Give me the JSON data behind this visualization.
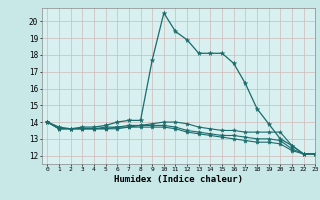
{
  "title": "",
  "xlabel": "Humidex (Indice chaleur)",
  "xlim": [
    -0.5,
    23
  ],
  "ylim": [
    11.5,
    20.8
  ],
  "yticks": [
    12,
    13,
    14,
    15,
    16,
    17,
    18,
    19,
    20
  ],
  "xticks": [
    0,
    1,
    2,
    3,
    4,
    5,
    6,
    7,
    8,
    9,
    10,
    11,
    12,
    13,
    14,
    15,
    16,
    17,
    18,
    19,
    20,
    21,
    22,
    23
  ],
  "bg_color": "#c8e8e8",
  "plot_bg": "#d8f0f0",
  "line_color": "#1a6b6b",
  "grid_color": "#c0d8d8",
  "line1_y": [
    14.0,
    13.7,
    13.6,
    13.7,
    13.7,
    13.8,
    14.0,
    14.1,
    14.1,
    17.7,
    20.5,
    19.4,
    18.9,
    18.1,
    18.1,
    18.1,
    17.5,
    16.3,
    14.8,
    13.9,
    13.0,
    12.6,
    12.1,
    12.1
  ],
  "line2_y": [
    14.0,
    13.6,
    13.6,
    13.6,
    13.6,
    13.7,
    13.7,
    13.8,
    13.8,
    13.9,
    14.0,
    14.0,
    13.9,
    13.7,
    13.6,
    13.5,
    13.5,
    13.4,
    13.4,
    13.4,
    13.4,
    12.6,
    12.1,
    12.1
  ],
  "line3_y": [
    14.0,
    13.6,
    13.6,
    13.6,
    13.6,
    13.6,
    13.7,
    13.7,
    13.8,
    13.8,
    13.8,
    13.7,
    13.5,
    13.4,
    13.3,
    13.2,
    13.2,
    13.1,
    13.0,
    13.0,
    12.9,
    12.4,
    12.1,
    12.1
  ],
  "line4_y": [
    14.0,
    13.6,
    13.6,
    13.6,
    13.6,
    13.6,
    13.6,
    13.7,
    13.7,
    13.7,
    13.7,
    13.6,
    13.4,
    13.3,
    13.2,
    13.1,
    13.0,
    12.9,
    12.8,
    12.8,
    12.7,
    12.3,
    12.1,
    12.1
  ]
}
